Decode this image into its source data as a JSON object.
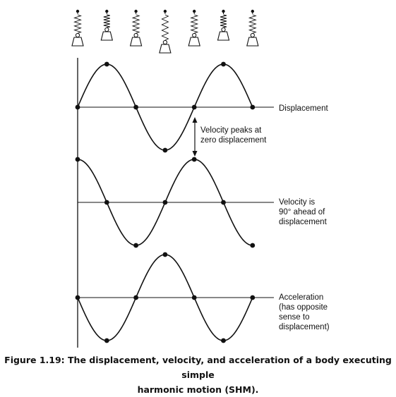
{
  "labels": {
    "displacement": "Displacement",
    "arrow_note": [
      "Velocity peaks at",
      "zero displacement"
    ],
    "velocity": [
      "Velocity is",
      "90° ahead of",
      "displacement"
    ],
    "acceleration": [
      "Acceleration",
      "(has opposite",
      "sense to",
      "displacement)"
    ]
  },
  "caption": {
    "line1": "Figure 1.19: The displacement, velocity, and acceleration of a body executing simple",
    "line2": "harmonic motion (SHM)."
  },
  "waves": [
    {
      "name": "displacement",
      "phase_deg": 0,
      "sign": 1
    },
    {
      "name": "velocity",
      "phase_deg": 90,
      "sign": 1
    },
    {
      "name": "acceleration",
      "phase_deg": 0,
      "sign": -1
    }
  ],
  "spring_positions": [
    0,
    1,
    0,
    -1,
    0,
    1,
    0
  ],
  "colors": {
    "line": "#111111",
    "background": "#ffffff"
  }
}
